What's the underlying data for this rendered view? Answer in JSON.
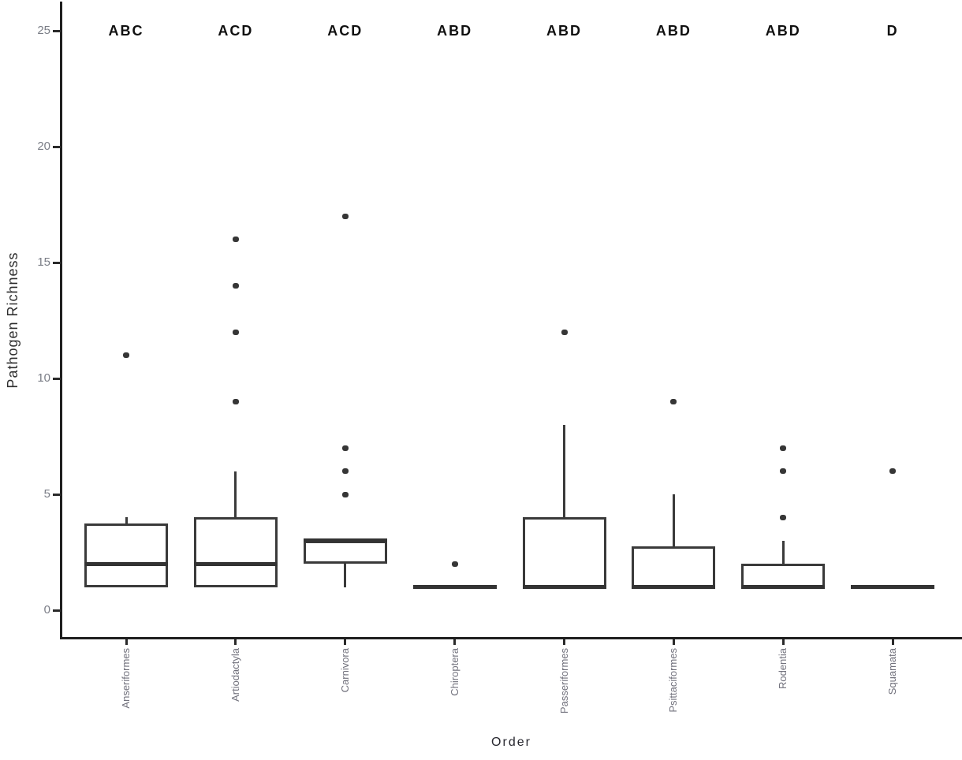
{
  "figure": {
    "x_axis_title": "Order",
    "y_axis_title": "Pathogen Richness"
  },
  "appearance": {
    "background_color": "#ffffff",
    "box_stroke_color": "#3a3a3a",
    "axis_color": "#1f1f1f",
    "tick_label_color": "#7a7d86",
    "significance_label_color": "#101010"
  },
  "chart_data": {
    "type": "box",
    "title": "",
    "xlabel": "Order",
    "ylabel": "Pathogen Richness",
    "ylim": [
      0,
      25
    ],
    "yticks": [
      0,
      5,
      10,
      15,
      20,
      25
    ],
    "grid": false,
    "legend": false,
    "categories": [
      "Anseriformes",
      "Artiodactyla",
      "Carnivora",
      "Chiroptera",
      "Passeriformes",
      "Psittaciformes",
      "Rodentia",
      "Squamata"
    ],
    "significance_labels": [
      "ABC",
      "ACD",
      "ACD",
      "ABD",
      "ABD",
      "ABD",
      "ABD",
      "D"
    ],
    "series": [
      {
        "name": "Anseriformes",
        "sig_label": "ABC",
        "q1": 1,
        "median": 2,
        "q3": 3.75,
        "whisker_low": 1,
        "whisker_high": 4,
        "outliers": [
          11
        ]
      },
      {
        "name": "Artiodactyla",
        "sig_label": "ACD",
        "q1": 1,
        "median": 2,
        "q3": 4,
        "whisker_low": 1,
        "whisker_high": 6,
        "outliers": [
          9,
          12,
          14,
          16
        ]
      },
      {
        "name": "Carnivora",
        "sig_label": "ACD",
        "q1": 2,
        "median": 3,
        "q3": 3,
        "whisker_low": 1,
        "whisker_high": 3,
        "outliers": [
          5,
          6,
          7,
          17
        ]
      },
      {
        "name": "Chiroptera",
        "sig_label": "ABD",
        "q1": 1,
        "median": 1,
        "q3": 1,
        "whisker_low": 1,
        "whisker_high": 1,
        "outliers": [
          2
        ]
      },
      {
        "name": "Passeriformes",
        "sig_label": "ABD",
        "q1": 1,
        "median": 1,
        "q3": 4,
        "whisker_low": 1,
        "whisker_high": 8,
        "outliers": [
          12
        ]
      },
      {
        "name": "Psittaciformes",
        "sig_label": "ABD",
        "q1": 1,
        "median": 1,
        "q3": 2.75,
        "whisker_low": 1,
        "whisker_high": 5,
        "outliers": [
          9
        ]
      },
      {
        "name": "Rodentia",
        "sig_label": "ABD",
        "q1": 1,
        "median": 1,
        "q3": 2,
        "whisker_low": 1,
        "whisker_high": 3,
        "outliers": [
          4,
          6,
          7
        ]
      },
      {
        "name": "Squamata",
        "sig_label": "D",
        "q1": 1,
        "median": 1,
        "q3": 1,
        "whisker_low": 1,
        "whisker_high": 1,
        "outliers": [
          6
        ]
      }
    ]
  }
}
